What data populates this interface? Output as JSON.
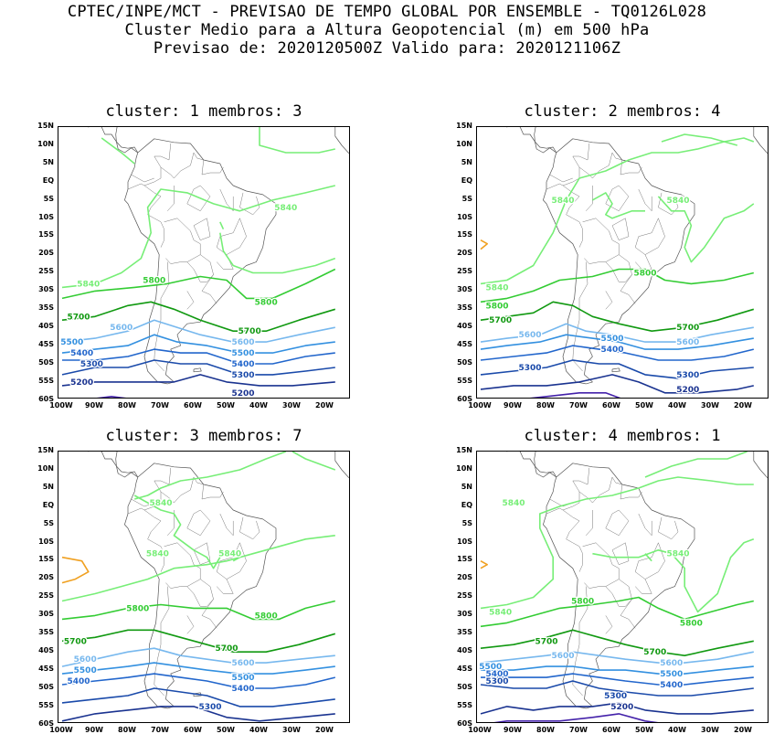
{
  "header": {
    "line1": "CPTEC/INPE/MCT - PREVISAO DE TEMPO GLOBAL POR ENSEMBLE - TQ0126L028",
    "line2": "Cluster Medio para a Altura Geopotencial (m) em 500 hPa",
    "line3": "Previsao de: 2020120500Z   Valido para: 2020121106Z"
  },
  "axes": {
    "lat_labels": [
      "15N",
      "10N",
      "5N",
      "EQ",
      "5S",
      "10S",
      "15S",
      "20S",
      "25S",
      "30S",
      "35S",
      "40S",
      "45S",
      "50S",
      "55S",
      "60S"
    ],
    "lon_labels": [
      "100W",
      "90W",
      "80W",
      "70W",
      "60W",
      "50W",
      "40W",
      "30W",
      "20W"
    ]
  },
  "colors": {
    "c5840": "#77ee77",
    "c5800": "#33cc33",
    "c5700": "#119911",
    "c5600": "#77b8ee",
    "c5500": "#3390e0",
    "c5400": "#2266cc",
    "c5300": "#1a4aaa",
    "c5200": "#1a3390",
    "c5100": "#4422aa",
    "c5880": "#f0a020"
  },
  "panels": [
    {
      "title": "cluster: 1   membros: 3",
      "labels": {
        "5840": [
          "5840",
          "5840"
        ],
        "5800": [
          "5800",
          "5800"
        ],
        "5700": [
          "5700",
          "5700"
        ],
        "5600": [
          "5600",
          "5600"
        ],
        "5500": [
          "5500",
          "5500"
        ],
        "5400": [
          "5400",
          "5400"
        ],
        "5300": [
          "5300",
          "5300"
        ],
        "5200": [
          "5200",
          "5200"
        ]
      }
    },
    {
      "title": "cluster: 2   membros: 4",
      "labels": {
        "5840": [
          "5840",
          "5840",
          "5840"
        ],
        "5800": [
          "5800",
          "5800"
        ],
        "5700": [
          "5700",
          "5700"
        ],
        "5600": [
          "5600",
          "5600"
        ],
        "5500": [
          "5500"
        ],
        "5400": [
          "5400"
        ],
        "5300": [
          "5300",
          "5300"
        ],
        "5200": [
          "5200"
        ]
      }
    },
    {
      "title": "cluster: 3   membros: 7",
      "labels": {
        "5840": [
          "5840",
          "5840",
          "5840"
        ],
        "5800": [
          "5800",
          "5800"
        ],
        "5700": [
          "5700",
          "5700"
        ],
        "5600": [
          "5600",
          "5600"
        ],
        "5500": [
          "5500",
          "5500"
        ],
        "5400": [
          "5400",
          "5400"
        ],
        "5300": [
          "5300"
        ]
      }
    },
    {
      "title": "cluster: 4   membros: 1",
      "labels": {
        "5840": [
          "5840",
          "5840",
          "5840"
        ],
        "5800": [
          "5800",
          "5800"
        ],
        "5700": [
          "5700",
          "5700"
        ],
        "5600": [
          "5600",
          "5600"
        ],
        "5500": [
          "5500",
          "5500"
        ],
        "5400": [
          "5400",
          "5400"
        ],
        "5300": [
          "5300",
          "5300"
        ],
        "5200": [
          "5200"
        ]
      }
    }
  ]
}
